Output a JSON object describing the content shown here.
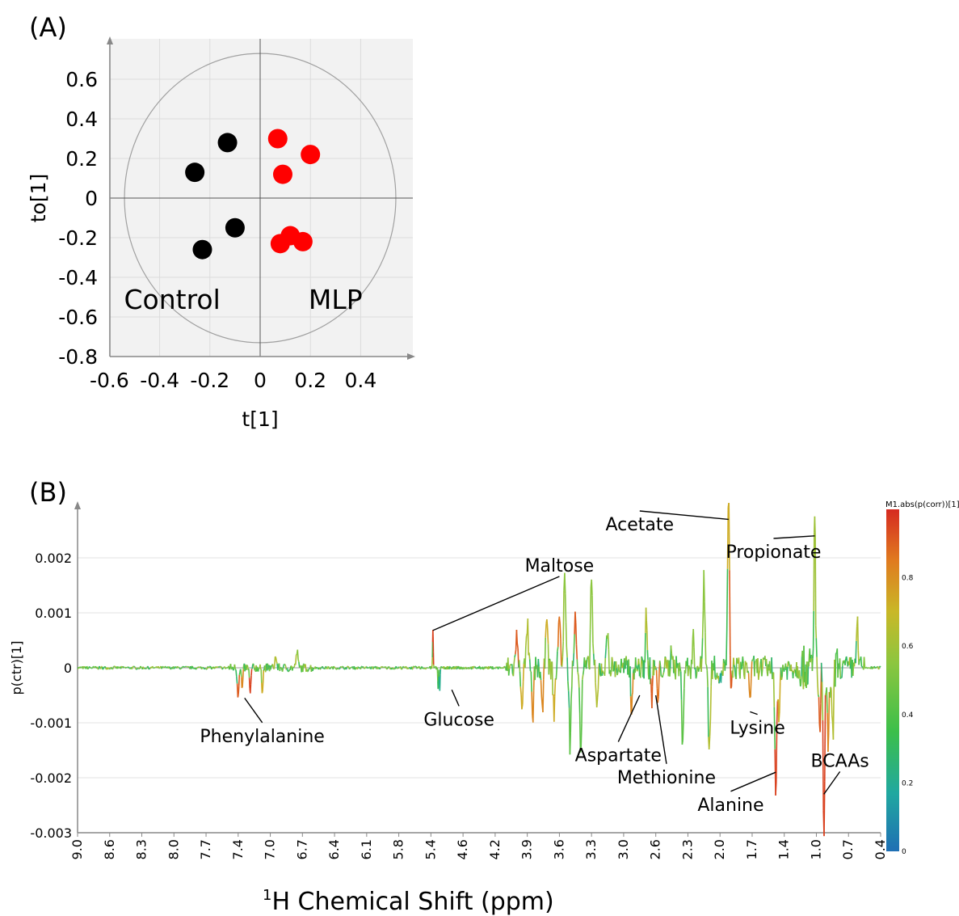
{
  "chart_data": [
    {
      "type": "scatter",
      "panel_label": "(A)",
      "xlabel": "t[1]",
      "ylabel": "to[1]",
      "xlim": [
        -0.6,
        0.6
      ],
      "ylim": [
        -0.8,
        0.8
      ],
      "xticks": [
        -0.6,
        -0.4,
        -0.2,
        0,
        0.2,
        0.4
      ],
      "xtick_labels": [
        "-0.6",
        "-0.4",
        "-0.2",
        "0",
        "0.2",
        "0.4"
      ],
      "yticks": [
        0.6,
        0.4,
        0.2,
        0,
        -0.2,
        -0.4,
        -0.6,
        -0.8
      ],
      "ytick_labels": [
        "0.6",
        "0.4",
        "0.2",
        "0",
        "-0.2",
        "-0.4",
        "-0.6",
        "-0.8"
      ],
      "grid": true,
      "hotelling_ellipse": {
        "rx": 0.54,
        "ry": 0.73
      },
      "group_labels": [
        {
          "text": "Control",
          "x": -0.35,
          "y": -0.56
        },
        {
          "text": "MLP",
          "x": 0.3,
          "y": -0.56
        }
      ],
      "series": [
        {
          "name": "Control",
          "color": "#000000",
          "points": [
            [
              -0.13,
              0.28
            ],
            [
              -0.26,
              0.13
            ],
            [
              -0.1,
              -0.15
            ],
            [
              -0.23,
              -0.26
            ]
          ]
        },
        {
          "name": "MLP",
          "color": "#ff0000",
          "points": [
            [
              0.07,
              0.3
            ],
            [
              0.2,
              0.22
            ],
            [
              0.09,
              0.12
            ],
            [
              0.12,
              -0.19
            ],
            [
              0.17,
              -0.22
            ],
            [
              0.08,
              -0.23
            ]
          ]
        }
      ]
    },
    {
      "type": "line",
      "panel_label": "(B)",
      "xlabel_sup": "1",
      "xlabel": "H Chemical Shift (ppm)",
      "ylabel": "p(ctr)[1]",
      "xlim": [
        9.0,
        0.4
      ],
      "ylim": [
        -0.003,
        0.003
      ],
      "xticks": [
        9.0,
        8.6,
        8.3,
        8.0,
        7.7,
        7.4,
        7.0,
        6.7,
        6.4,
        6.1,
        5.8,
        5.4,
        4.6,
        4.2,
        3.9,
        3.6,
        3.3,
        3.0,
        2.6,
        2.3,
        2.0,
        1.7,
        1.4,
        1.0,
        0.7,
        0.4
      ],
      "xtick_labels": [
        "9.0",
        "8.6",
        "8.3",
        "8.0",
        "7.7",
        "7.4",
        "7.0",
        "6.7",
        "6.4",
        "6.1",
        "5.8",
        "5.4",
        "4.6",
        "4.2",
        "3.9",
        "3.6",
        "3.3",
        "3.0",
        "2.6",
        "2.3",
        "2.0",
        "1.7",
        "1.4",
        "1.0",
        "0.7",
        "0.4"
      ],
      "yticks": [
        0.002,
        0.001,
        0,
        -0.001,
        -0.002,
        -0.003
      ],
      "ytick_labels": [
        "0.002",
        "0.001",
        "0",
        "-0.001",
        "-0.002",
        "-0.003"
      ],
      "color_scale": {
        "title": "M1.abs(p(corr))[1]",
        "ticks": [
          0,
          0.2,
          0.4,
          0.6,
          0.8
        ],
        "tick_labels": [
          "0",
          "0.2",
          "0.4",
          "0.6",
          "0.8"
        ],
        "colors": [
          "#1f6fb4",
          "#20a8a0",
          "#3cbf4a",
          "#8cc63f",
          "#c9b827",
          "#e07b1f",
          "#d62a20"
        ]
      },
      "peaks": [
        {
          "x": 7.4,
          "y": -0.0005,
          "c": 0.9
        },
        {
          "x": 7.35,
          "y": -0.0004,
          "c": 0.8
        },
        {
          "x": 7.25,
          "y": -0.0005,
          "c": 0.95
        },
        {
          "x": 7.1,
          "y": -0.0004,
          "c": 0.7
        },
        {
          "x": 6.95,
          "y": 0.0002,
          "c": 0.6
        },
        {
          "x": 6.75,
          "y": 0.0003,
          "c": 0.5
        },
        {
          "x": 5.35,
          "y": 0.00068,
          "c": 0.95
        },
        {
          "x": 5.22,
          "y": -0.0004,
          "c": 0.3
        },
        {
          "x": 5.18,
          "y": -0.0004,
          "c": 0.2
        },
        {
          "x": 4.0,
          "y": 0.0006,
          "c": 0.9
        },
        {
          "x": 3.95,
          "y": -0.0006,
          "c": 0.7
        },
        {
          "x": 3.9,
          "y": 0.0008,
          "c": 0.6
        },
        {
          "x": 3.85,
          "y": -0.001,
          "c": 0.8
        },
        {
          "x": 3.76,
          "y": -0.0009,
          "c": 0.8
        },
        {
          "x": 3.72,
          "y": 0.0011,
          "c": 0.7
        },
        {
          "x": 3.65,
          "y": -0.0008,
          "c": 0.7
        },
        {
          "x": 3.6,
          "y": 0.0011,
          "c": 0.85
        },
        {
          "x": 3.55,
          "y": 0.0018,
          "c": 0.5
        },
        {
          "x": 3.5,
          "y": -0.0014,
          "c": 0.4
        },
        {
          "x": 3.45,
          "y": 0.0011,
          "c": 0.9
        },
        {
          "x": 3.4,
          "y": -0.0016,
          "c": 0.4
        },
        {
          "x": 3.3,
          "y": 0.0017,
          "c": 0.5
        },
        {
          "x": 3.25,
          "y": -0.0008,
          "c": 0.6
        },
        {
          "x": 3.15,
          "y": 0.0007,
          "c": 0.5
        },
        {
          "x": 2.9,
          "y": -0.0009,
          "c": 0.8
        },
        {
          "x": 2.72,
          "y": 0.0011,
          "c": 0.6
        },
        {
          "x": 2.65,
          "y": -0.0006,
          "c": 0.9
        },
        {
          "x": 2.58,
          "y": -0.0006,
          "c": 0.85
        },
        {
          "x": 2.45,
          "y": 0.0004,
          "c": 0.5
        },
        {
          "x": 2.35,
          "y": -0.0013,
          "c": 0.4
        },
        {
          "x": 2.25,
          "y": 0.0005,
          "c": 0.5
        },
        {
          "x": 2.15,
          "y": 0.0017,
          "c": 0.5
        },
        {
          "x": 2.1,
          "y": -0.0016,
          "c": 0.6
        },
        {
          "x": 2.0,
          "y": -0.0003,
          "c": 0.2
        },
        {
          "x": 1.92,
          "y": 0.0031,
          "c": 0.7
        },
        {
          "x": 1.9,
          "y": -0.0005,
          "c": 0.9
        },
        {
          "x": 1.72,
          "y": -0.0005,
          "c": 0.8
        },
        {
          "x": 1.48,
          "y": -0.0022,
          "c": 0.95
        },
        {
          "x": 1.45,
          "y": -0.001,
          "c": 0.7
        },
        {
          "x": 1.02,
          "y": 0.003,
          "c": 0.55
        },
        {
          "x": 0.97,
          "y": -0.0013,
          "c": 0.9
        },
        {
          "x": 0.93,
          "y": -0.0029,
          "c": 0.95
        },
        {
          "x": 0.89,
          "y": -0.0017,
          "c": 0.8
        },
        {
          "x": 0.85,
          "y": -0.0014,
          "c": 0.6
        },
        {
          "x": 0.62,
          "y": 0.0009,
          "c": 0.6
        }
      ],
      "annotations": [
        {
          "text": "Phenylalanine",
          "x": 7.1,
          "y": -0.00135,
          "px": 7.32,
          "py": -0.00055
        },
        {
          "text": "Glucose",
          "x": 4.7,
          "y": -0.00105,
          "px": 4.88,
          "py": -0.0004
        },
        {
          "text": "Maltose",
          "x": 3.6,
          "y": 0.00175,
          "px": 5.35,
          "py": 0.00068
        },
        {
          "text": "Aspartate",
          "x": 3.05,
          "y": -0.0017,
          "px": 2.8,
          "py": -0.0005
        },
        {
          "text": "Methionine",
          "x": 2.5,
          "y": -0.0021,
          "px": 2.6,
          "py": -0.0005
        },
        {
          "text": "Acetate",
          "x": 2.8,
          "y": 0.0025,
          "px": 1.92,
          "py": 0.0027
        },
        {
          "text": "Propionate",
          "x": 1.5,
          "y": 0.002,
          "px": 1.02,
          "py": 0.0024
        },
        {
          "text": "Lysine",
          "x": 1.65,
          "y": -0.0012,
          "px": 1.72,
          "py": -0.0008
        },
        {
          "text": "Alanine",
          "x": 1.9,
          "y": -0.0026,
          "px": 1.48,
          "py": -0.0019
        },
        {
          "text": "BCAAs",
          "x": 0.78,
          "y": -0.0018,
          "px": 0.93,
          "py": -0.0023
        }
      ]
    }
  ]
}
